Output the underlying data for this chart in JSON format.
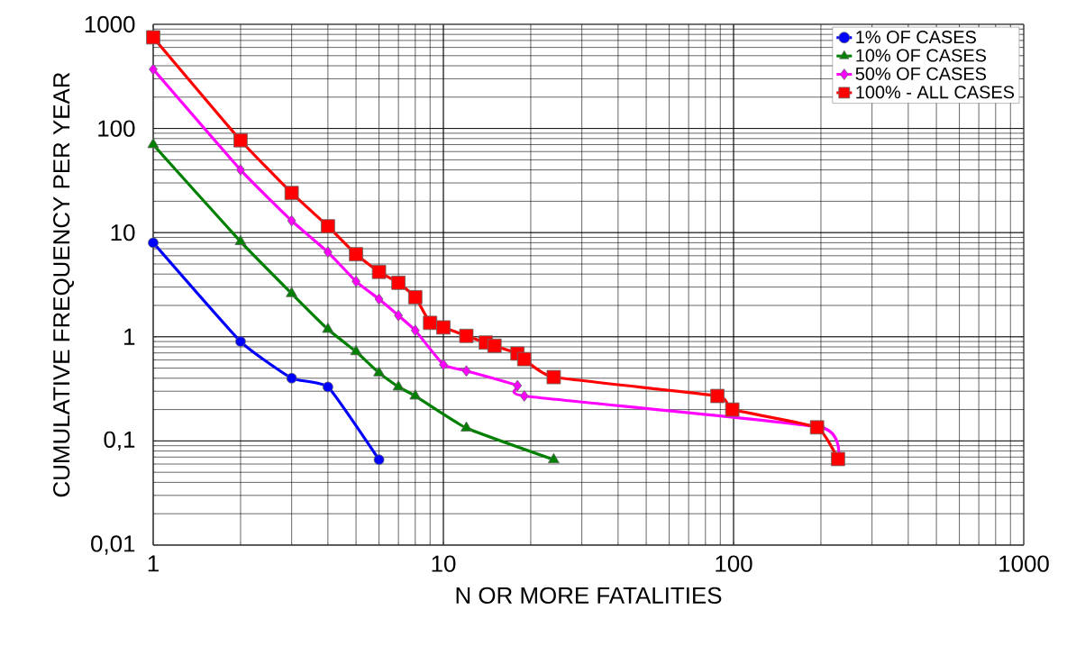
{
  "chart_data": {
    "type": "line",
    "xlabel": "N OR MORE FATALITIES",
    "ylabel": "CUMULATIVE FREQUENCY PER YEAR",
    "log": "xy",
    "grid": true,
    "legend": "top right",
    "xlim": [
      1,
      1000
    ],
    "xticks": [
      1,
      10,
      100,
      1000
    ],
    "ylim": [
      0.01,
      1000
    ],
    "yticks": [
      {
        "value": 0.01,
        "label": "0,01"
      },
      {
        "value": 0.1,
        "label": "0,1"
      },
      1,
      10,
      100,
      1000
    ],
    "series": [
      {
        "name": "1% OF CASES",
        "color": "#0000ff",
        "marker": "circle",
        "x": [
          1,
          2,
          3,
          4,
          6
        ],
        "values": [
          8,
          0.9,
          0.4,
          0.33,
          0.066
        ]
      },
      {
        "name": "10% OF CASES",
        "color": "#008000",
        "marker": "triangle",
        "x": [
          1,
          2,
          3,
          4,
          5,
          6,
          7,
          8,
          12,
          24
        ],
        "values": [
          70,
          8.2,
          2.6,
          1.18,
          0.72,
          0.45,
          0.33,
          0.27,
          0.133,
          0.066
        ]
      },
      {
        "name": "50% OF CASES",
        "color": "#ff00ff",
        "marker": "diamond",
        "x": [
          1,
          2,
          3,
          4,
          5,
          6,
          7,
          8,
          10,
          12,
          18,
          19,
          200,
          230
        ],
        "values": [
          370,
          40,
          13,
          6.5,
          3.4,
          2.3,
          1.6,
          1.15,
          0.54,
          0.47,
          0.34,
          0.27,
          0.135,
          0.067
        ]
      },
      {
        "name": "100% - ALL CASES",
        "color": "#ff0000",
        "marker": "square",
        "x": [
          1,
          2,
          3,
          4,
          5,
          6,
          7,
          8,
          9,
          10,
          12,
          14,
          15,
          18,
          19,
          24,
          88,
          99,
          194,
          229
        ],
        "values": [
          750,
          77,
          24,
          11.5,
          6.2,
          4.2,
          3.3,
          2.4,
          1.36,
          1.23,
          1.02,
          0.88,
          0.82,
          0.69,
          0.61,
          0.41,
          0.27,
          0.2,
          0.135,
          0.067
        ]
      }
    ]
  }
}
